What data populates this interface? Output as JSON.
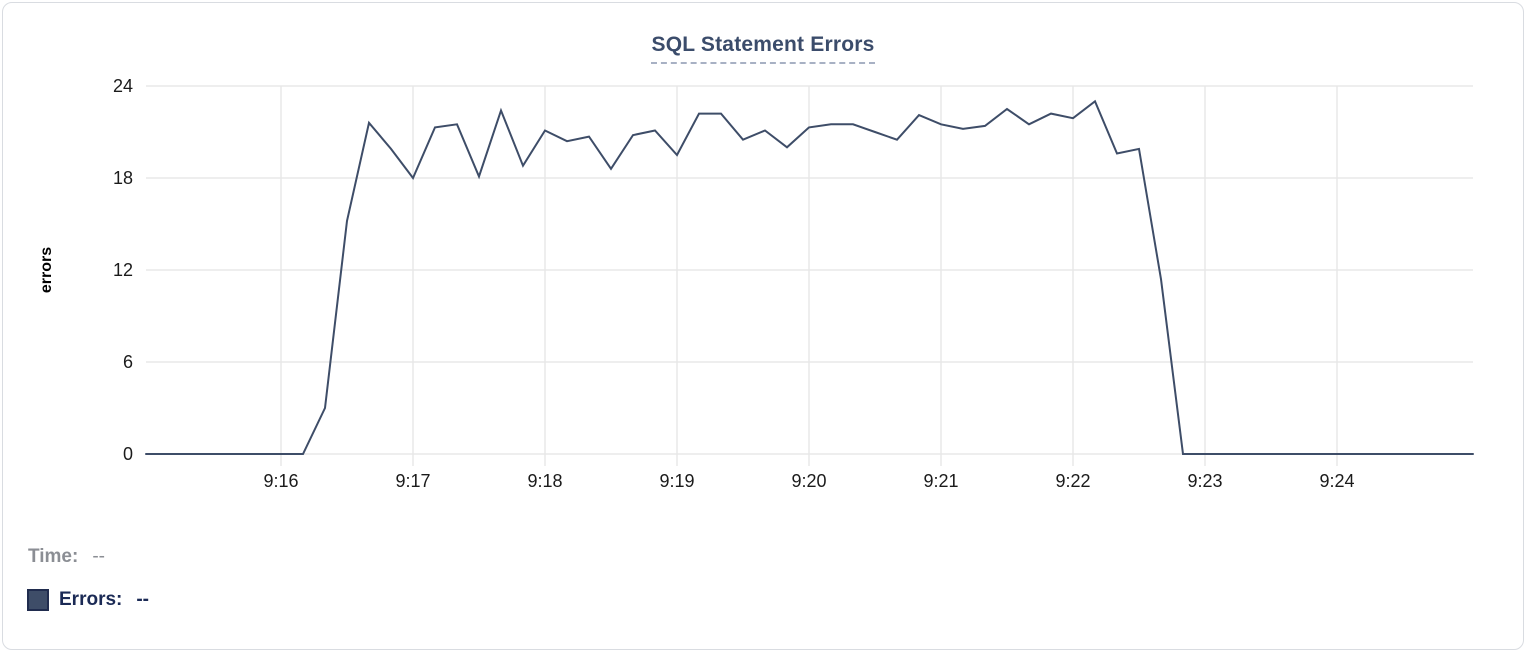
{
  "chart_data": {
    "type": "line",
    "title": "SQL Statement Errors",
    "xlabel": "",
    "ylabel": "errors",
    "ylim": [
      0,
      24
    ],
    "y_ticks": [
      0,
      6,
      12,
      18,
      24
    ],
    "x_tick_labels": [
      "9:16",
      "9:17",
      "9:18",
      "9:19",
      "9:20",
      "9:21",
      "9:22",
      "9:23",
      "9:24"
    ],
    "grid": true,
    "legend_position": "bottom-left",
    "interval_seconds": 10,
    "x": [
      "9:15:00",
      "9:15:10",
      "9:15:20",
      "9:15:30",
      "9:15:40",
      "9:15:50",
      "9:16:00",
      "9:16:10",
      "9:16:20",
      "9:16:30",
      "9:16:40",
      "9:16:50",
      "9:17:00",
      "9:17:10",
      "9:17:20",
      "9:17:30",
      "9:17:40",
      "9:17:50",
      "9:18:00",
      "9:18:10",
      "9:18:20",
      "9:18:30",
      "9:18:40",
      "9:18:50",
      "9:19:00",
      "9:19:10",
      "9:19:20",
      "9:19:30",
      "9:19:40",
      "9:19:50",
      "9:20:00",
      "9:20:10",
      "9:20:20",
      "9:20:30",
      "9:20:40",
      "9:20:50",
      "9:21:00",
      "9:21:10",
      "9:21:20",
      "9:21:30",
      "9:21:40",
      "9:21:50",
      "9:22:00",
      "9:22:10",
      "9:22:20",
      "9:22:30",
      "9:22:40",
      "9:22:50",
      "9:23:00",
      "9:23:10",
      "9:23:20",
      "9:23:30",
      "9:23:40",
      "9:23:50",
      "9:24:00",
      "9:24:10",
      "9:24:20",
      "9:24:30",
      "9:24:40",
      "9:24:50",
      "9:25:00"
    ],
    "series": [
      {
        "name": "Errors",
        "color": "#3E4D68",
        "values": [
          0,
          0,
          0,
          0,
          0,
          0,
          0,
          0,
          3,
          15.2,
          21.6,
          19.9,
          18,
          21.3,
          21.5,
          18.1,
          22.4,
          18.8,
          21.1,
          20.4,
          20.7,
          18.6,
          20.8,
          21.1,
          19.5,
          22.2,
          22.2,
          20.5,
          21.1,
          20,
          21.3,
          21.5,
          21.5,
          21,
          20.5,
          22.1,
          21.5,
          21.2,
          21.4,
          22.5,
          21.5,
          22.2,
          21.9,
          23,
          19.6,
          19.9,
          11.4,
          0,
          0,
          0,
          0,
          0,
          0,
          0,
          0,
          0,
          0,
          0,
          0,
          0,
          0
        ]
      }
    ]
  },
  "title": "SQL Statement Errors",
  "axis": {
    "ylabel": "errors",
    "grid_color": "#e8e8e8",
    "tick_label_color": "#1b1b1b"
  },
  "legend": {
    "time_label": "Time:",
    "time_value": "--",
    "errors_label": "Errors:",
    "errors_value": "--",
    "swatch_color": "#3E4D68"
  },
  "colors": {
    "line": "#3E4D68",
    "title": "#3b4c6b",
    "title_underline": "#a8b1c4",
    "card_border": "#d9dce1"
  }
}
